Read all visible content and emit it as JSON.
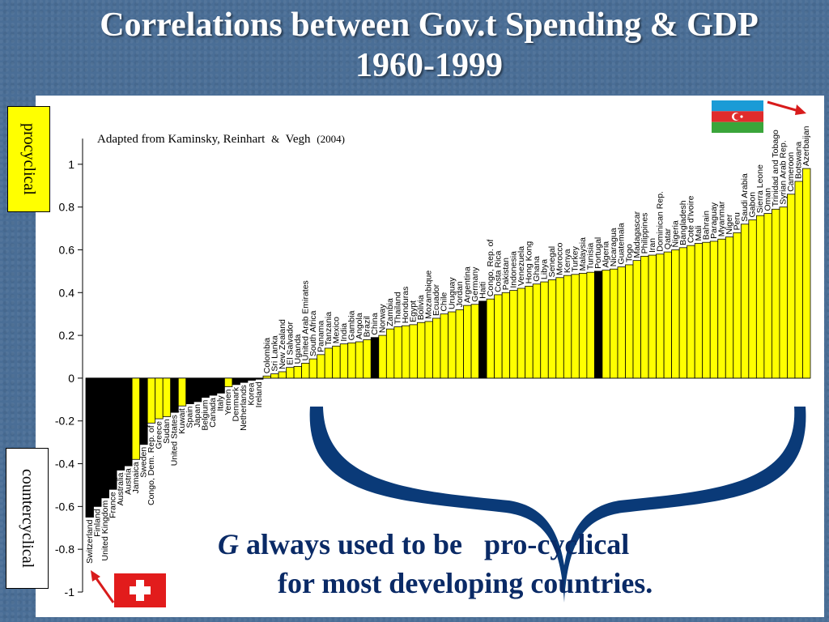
{
  "title": {
    "line1": "Correlations between Gov.t Spending & GDP",
    "line2": "1960-1999"
  },
  "source_note": {
    "main": "Adapted from Kaminsky, Reinhart",
    "amp": "&",
    "author": "Vegh",
    "year": "(2004)"
  },
  "side_labels": {
    "procyclical": "procyclical",
    "countercyclical": "countercyclical"
  },
  "callout": {
    "symbol": "G",
    "line1_rest": "always used to be   pro-cyclical",
    "line2": "for most developing countries."
  },
  "flags": {
    "azerbaijan": "flag-azerbaijan",
    "switzerland": "flag-switzerland"
  },
  "colors": {
    "bar_yellow": "#ffff00",
    "bar_black": "#000000",
    "brace": "#0a3a78",
    "arrow": "#d81b1b",
    "background": "#4a6e96"
  },
  "chart_data": {
    "type": "bar",
    "ylim": [
      -1,
      1.2
    ],
    "yticks": [
      -1,
      -0.8,
      -0.6,
      -0.4,
      -0.2,
      0,
      0.2,
      0.4,
      0.6,
      0.8,
      1
    ],
    "ytick_labels": [
      "-1",
      "-0.8",
      "-0.6",
      "-0.4",
      "-0.2",
      "0",
      "0.2",
      "0.4",
      "0.6",
      "0.8",
      "1"
    ],
    "grid": false,
    "xlabel": "",
    "ylabel": "",
    "categories": [
      "Switzerland",
      "Finland",
      "United Kingdom",
      "France",
      "Australia",
      "Austria",
      "Jamaica",
      "Sweden",
      "Congo, Dem. Rep. of",
      "Greece",
      "Sudan",
      "United States",
      "Kuwait",
      "Spain",
      "Japan",
      "Belgium",
      "Canada",
      "Italy",
      "Yemen",
      "Denmark",
      "Netherlands",
      "Korea",
      "Ireland",
      "Colombia",
      "Sri Lanka",
      "New Zealand",
      "El Salvador",
      "Uganda",
      "United Arab Emirates",
      "South Africa",
      "Panama",
      "Tanzania",
      "Mexico",
      "India",
      "Gambia",
      "Angola",
      "Brazil",
      "China",
      "Norway",
      "Zambia",
      "Thailand",
      "Honduras",
      "Egypt",
      "Bolivia",
      "Mozambique",
      "Ecuador",
      "Chile",
      "Uruguay",
      "Jordan",
      "Argentina",
      "Germany",
      "Haiti",
      "Congo, Rep. of",
      "Costa Rica",
      "Pakistan",
      "Indonesia",
      "Venezuela",
      "Hong Kong",
      "Ghana",
      "Libya",
      "Senegal",
      "Morocco",
      "Kenya",
      "Turkey",
      "Malaysia",
      "Tunisia",
      "Portugal",
      "Algeria",
      "Nicaragua",
      "Guatemala",
      "Togo",
      "Madagascar",
      "Philippines",
      "Iran",
      "Dominican Rep.",
      "Qatar",
      "Nigeria",
      "Bangladesh",
      "Cote d'Ivoire",
      "Mali",
      "Bahrain",
      "Paraguay",
      "Myanmar",
      "Niger",
      "Peru",
      "Saudi Arabia",
      "Gabon",
      "Sierra Leone",
      "Oman",
      "Trinidad and Tobago",
      "Syrian Arab Rep.",
      "Cameroon",
      "Botswana",
      "Azerbaijan"
    ],
    "values": [
      -0.65,
      -0.6,
      -0.56,
      -0.52,
      -0.43,
      -0.41,
      -0.38,
      -0.31,
      -0.21,
      -0.19,
      -0.18,
      -0.16,
      -0.13,
      -0.12,
      -0.11,
      -0.09,
      -0.08,
      -0.07,
      -0.04,
      -0.03,
      -0.02,
      -0.01,
      -0.005,
      0.01,
      0.02,
      0.03,
      0.05,
      0.055,
      0.07,
      0.09,
      0.11,
      0.14,
      0.15,
      0.16,
      0.165,
      0.17,
      0.18,
      0.19,
      0.2,
      0.23,
      0.24,
      0.245,
      0.25,
      0.26,
      0.265,
      0.28,
      0.3,
      0.31,
      0.32,
      0.34,
      0.345,
      0.36,
      0.37,
      0.39,
      0.4,
      0.41,
      0.42,
      0.43,
      0.44,
      0.45,
      0.46,
      0.47,
      0.48,
      0.485,
      0.49,
      0.495,
      0.5,
      0.505,
      0.51,
      0.52,
      0.53,
      0.55,
      0.57,
      0.575,
      0.58,
      0.59,
      0.6,
      0.61,
      0.62,
      0.63,
      0.635,
      0.64,
      0.65,
      0.66,
      0.68,
      0.72,
      0.74,
      0.76,
      0.77,
      0.79,
      0.8,
      0.86,
      0.92,
      0.98
    ],
    "highlighted": [
      false,
      false,
      false,
      false,
      false,
      false,
      false,
      false,
      false,
      false,
      false,
      false,
      false,
      false,
      false,
      false,
      false,
      false,
      false,
      false,
      false,
      false,
      false,
      false,
      false,
      false,
      false,
      false,
      false,
      false,
      false,
      false,
      false,
      false,
      false,
      false,
      false,
      true,
      false,
      false,
      false,
      false,
      false,
      false,
      false,
      false,
      false,
      false,
      false,
      false,
      false,
      true,
      false,
      false,
      false,
      false,
      false,
      false,
      false,
      false,
      false,
      false,
      false,
      false,
      false,
      false,
      true,
      false,
      false,
      false,
      false,
      false,
      false,
      false,
      false,
      false,
      false,
      false,
      false,
      false,
      false,
      false,
      false,
      false,
      false,
      false,
      false,
      false,
      false,
      false,
      false,
      false,
      false,
      false
    ]
  }
}
